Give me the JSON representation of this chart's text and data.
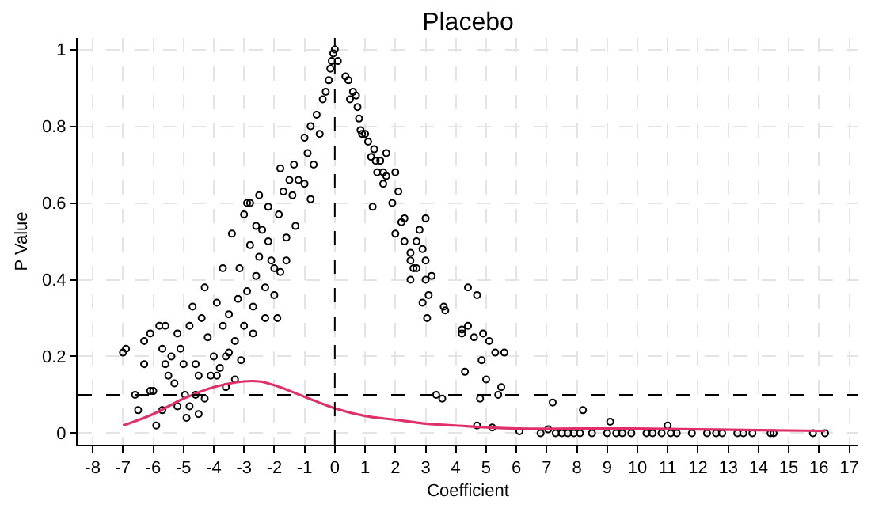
{
  "chart_data": {
    "type": "scatter",
    "title": "Placebo",
    "xlabel": "Coefficient",
    "ylabel": "P Value",
    "xlim": [
      -8.5,
      17.3
    ],
    "ylim": [
      -0.03,
      1.03
    ],
    "xticks": [
      -8,
      -7,
      -6,
      -5,
      -4,
      -3,
      -2,
      -1,
      0,
      1,
      2,
      3,
      4,
      5,
      6,
      7,
      8,
      9,
      10,
      11,
      12,
      13,
      14,
      15,
      16,
      17
    ],
    "yticks": [
      0,
      0.2,
      0.4,
      0.6,
      0.8,
      1
    ],
    "grid": true,
    "ref_lines": [
      {
        "axis": "x",
        "value": 0,
        "line_style": "dashed",
        "color": "#000000"
      },
      {
        "axis": "y",
        "value": 0.1,
        "line_style": "dashed",
        "color": "#000000"
      }
    ],
    "series": [
      {
        "marker": "circle",
        "color": "#000000",
        "x": [
          0.0,
          0.1,
          0.35,
          0.45,
          0.5,
          0.6,
          0.7,
          0.75,
          0.8,
          0.85,
          0.9,
          1.0,
          1.1,
          1.2,
          1.3,
          1.35,
          1.5,
          1.6,
          1.7,
          1.6,
          1.7,
          1.25,
          1.4,
          2.0,
          2.1,
          1.9,
          2.2,
          2.3,
          2.0,
          2.3,
          2.5,
          2.7,
          2.8,
          3.0,
          2.9,
          2.5,
          3.0,
          2.6,
          2.7,
          2.5,
          3.0,
          3.2,
          3.1,
          2.9,
          3.05,
          3.6,
          3.65,
          4.4,
          4.7,
          4.2,
          4.4,
          4.6,
          4.2,
          4.9,
          5.1,
          5.3,
          5.6,
          4.85,
          4.3,
          5.0,
          5.5,
          5.4,
          3.35,
          3.55,
          4.8,
          4.7,
          5.2,
          6.1,
          7.05,
          7.2,
          8.2,
          9.1,
          11.0,
          6.8,
          7.3,
          7.5,
          7.7,
          7.9,
          8.1,
          8.5,
          9.0,
          9.3,
          9.5,
          9.8,
          10.3,
          10.5,
          10.8,
          11.1,
          11.3,
          11.8,
          12.3,
          12.6,
          12.8,
          13.3,
          13.5,
          13.8,
          14.4,
          14.5,
          15.8,
          16.2,
          -7,
          -6.9,
          -6.6,
          -6.5,
          -6.3,
          -6.3,
          -6.1,
          -6.0,
          -5.9,
          -5.8,
          -5.7,
          -5.6,
          -5.5,
          -5.6,
          -5.4,
          -5.2,
          -5.3,
          -5.1,
          -5.0,
          -4.95,
          -4.9,
          -4.8,
          -4.7,
          -4.8,
          -4.6,
          -4.5,
          -4.5,
          -4.4,
          -4.3,
          -4.2,
          -4.3,
          -4.1,
          -4.0,
          -3.9,
          -3.8,
          -3.7,
          -3.6,
          -3.5,
          -3.4,
          -3.6,
          -3.3,
          -3.2,
          -3.15,
          -3.0,
          -3.1,
          -2.9,
          -3.0,
          -2.8,
          -2.8,
          -2.9,
          -2.7,
          -2.7,
          -2.6,
          -2.5,
          -2.4,
          -2.3,
          -2.2,
          -2.1,
          -2.0,
          -2.0,
          -1.9,
          -1.85,
          -1.8,
          -1.7,
          -1.6,
          -1.5,
          -1.4,
          -1.3,
          -1.35,
          -1.2,
          -1.0,
          -0.9,
          -1.0,
          -0.8,
          -0.7,
          -0.6,
          -0.5,
          -0.4,
          -0.3,
          -0.2,
          -0.15,
          -0.1,
          -0.05,
          -2.5,
          -2.2,
          -3.5,
          -3.9,
          -5.2,
          -4.6,
          -5.7,
          -6.1,
          -3.3,
          -2.3,
          -1.6,
          -0.8,
          -1.8,
          -2.6,
          -3.7
        ],
        "values": [
          1.0,
          0.97,
          0.93,
          0.92,
          0.87,
          0.89,
          0.88,
          0.85,
          0.82,
          0.79,
          0.78,
          0.78,
          0.76,
          0.72,
          0.74,
          0.71,
          0.71,
          0.68,
          0.73,
          0.65,
          0.67,
          0.59,
          0.68,
          0.68,
          0.63,
          0.6,
          0.55,
          0.56,
          0.52,
          0.5,
          0.47,
          0.5,
          0.53,
          0.56,
          0.48,
          0.45,
          0.45,
          0.43,
          0.43,
          0.4,
          0.4,
          0.41,
          0.36,
          0.34,
          0.3,
          0.33,
          0.32,
          0.38,
          0.36,
          0.27,
          0.28,
          0.25,
          0.26,
          0.26,
          0.24,
          0.21,
          0.21,
          0.19,
          0.16,
          0.14,
          0.12,
          0.1,
          0.1,
          0.09,
          0.09,
          0.02,
          0.015,
          0.005,
          0.01,
          0.08,
          0.06,
          0.03,
          0.02,
          0,
          0,
          0,
          0,
          0,
          0,
          0,
          0,
          0,
          0,
          0,
          0,
          0,
          0,
          0,
          0,
          0,
          0,
          0,
          0,
          0,
          0,
          0,
          0,
          0,
          0,
          0,
          0.21,
          0.22,
          0.1,
          0.06,
          0.24,
          0.18,
          0.26,
          0.11,
          0.02,
          0.28,
          0.22,
          0.28,
          0.15,
          0.18,
          0.2,
          0.26,
          0.13,
          0.22,
          0.18,
          0.1,
          0.04,
          0.07,
          0.33,
          0.28,
          0.18,
          0.15,
          0.05,
          0.3,
          0.38,
          0.25,
          0.09,
          0.15,
          0.2,
          0.34,
          0.17,
          0.28,
          0.2,
          0.31,
          0.52,
          0.12,
          0.24,
          0.35,
          0.43,
          0.28,
          0.19,
          0.6,
          0.57,
          0.6,
          0.49,
          0.37,
          0.33,
          0.26,
          0.41,
          0.46,
          0.53,
          0.38,
          0.5,
          0.45,
          0.43,
          0.36,
          0.3,
          0.57,
          0.42,
          0.63,
          0.51,
          0.66,
          0.62,
          0.54,
          0.7,
          0.66,
          0.65,
          0.73,
          0.77,
          0.8,
          0.7,
          0.83,
          0.78,
          0.87,
          0.89,
          0.92,
          0.95,
          0.97,
          0.99,
          0.62,
          0.59,
          0.21,
          0.15,
          0.07,
          0.1,
          0.06,
          0.11,
          0.14,
          0.3,
          0.45,
          0.61,
          0.69,
          0.54,
          0.43
        ]
      },
      {
        "type": "line",
        "marker": "none",
        "color": "#e0306a",
        "x": [
          -7,
          -6,
          -5,
          -4,
          -3,
          -2.5,
          -2,
          -1,
          0,
          1,
          2,
          3,
          4,
          5,
          6,
          8,
          10,
          12,
          14,
          16.2
        ],
        "values": [
          0.02,
          0.05,
          0.09,
          0.12,
          0.135,
          0.135,
          0.125,
          0.095,
          0.065,
          0.045,
          0.035,
          0.025,
          0.02,
          0.015,
          0.012,
          0.012,
          0.012,
          0.01,
          0.008,
          0.006
        ]
      }
    ]
  }
}
